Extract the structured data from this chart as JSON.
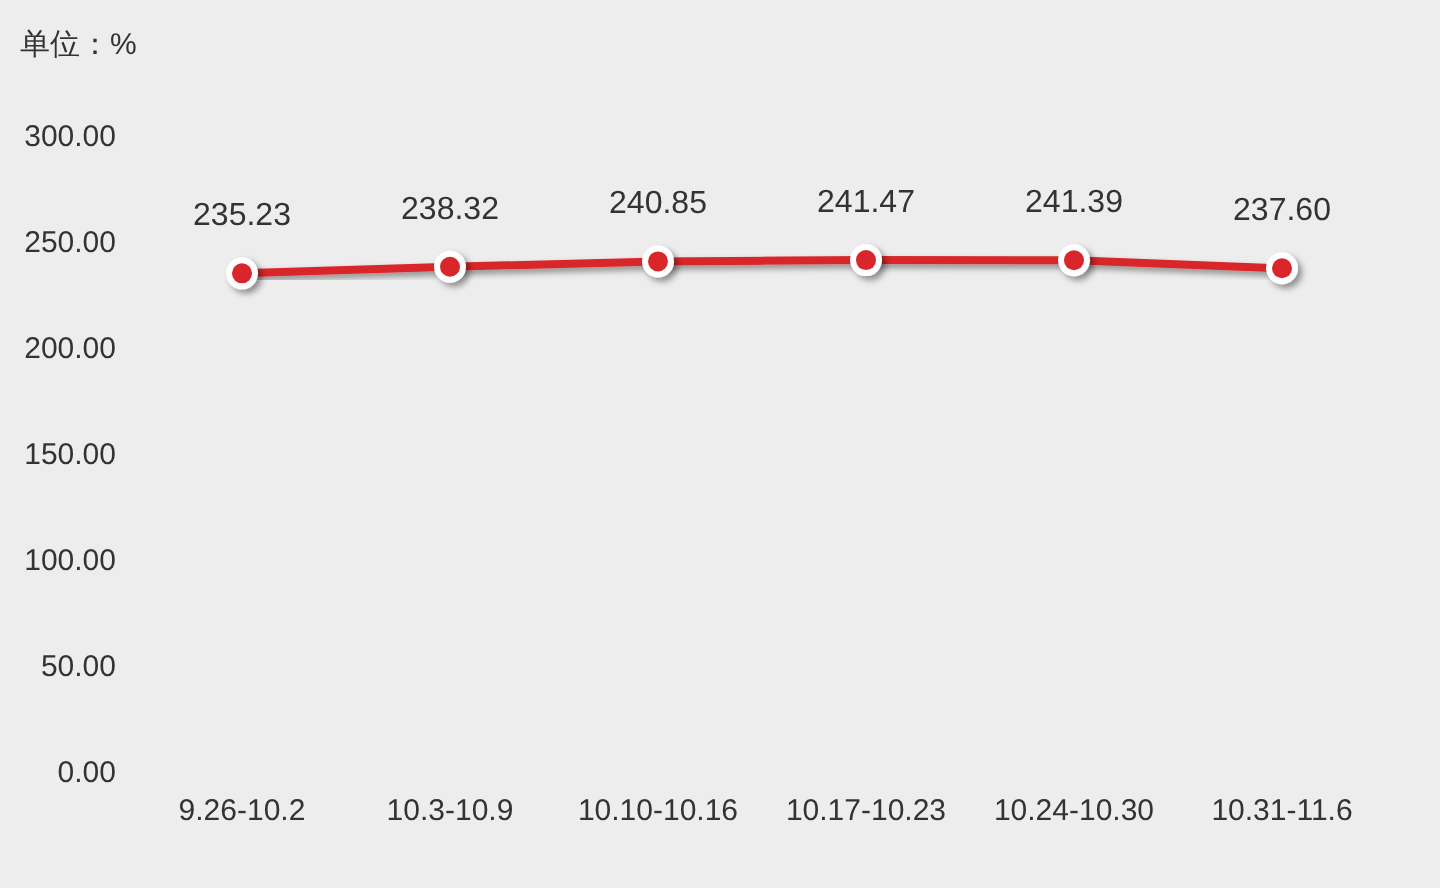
{
  "chart_data": {
    "type": "line",
    "ylabel": "单位：%",
    "categories": [
      "9.26-10.2",
      "10.3-10.9",
      "10.10-10.16",
      "10.17-10.23",
      "10.24-10.30",
      "10.31-11.6"
    ],
    "series": [
      {
        "color": "#d9262a",
        "values": [
          235.23,
          238.32,
          240.85,
          241.47,
          241.39,
          237.6
        ],
        "value_labels": [
          "235.23",
          "238.32",
          "240.85",
          "241.47",
          "241.39",
          "237.60"
        ]
      }
    ],
    "ylim": [
      0,
      300
    ],
    "yticks": [
      {
        "value": 0,
        "label": "0.00"
      },
      {
        "value": 50,
        "label": "50.00"
      },
      {
        "value": 100,
        "label": "100.00"
      },
      {
        "value": 150,
        "label": "150.00"
      },
      {
        "value": 200,
        "label": "200.00"
      },
      {
        "value": 250,
        "label": "250.00"
      },
      {
        "value": 300,
        "label": "300.00"
      }
    ],
    "marker": "circle",
    "line_style": "solid"
  }
}
